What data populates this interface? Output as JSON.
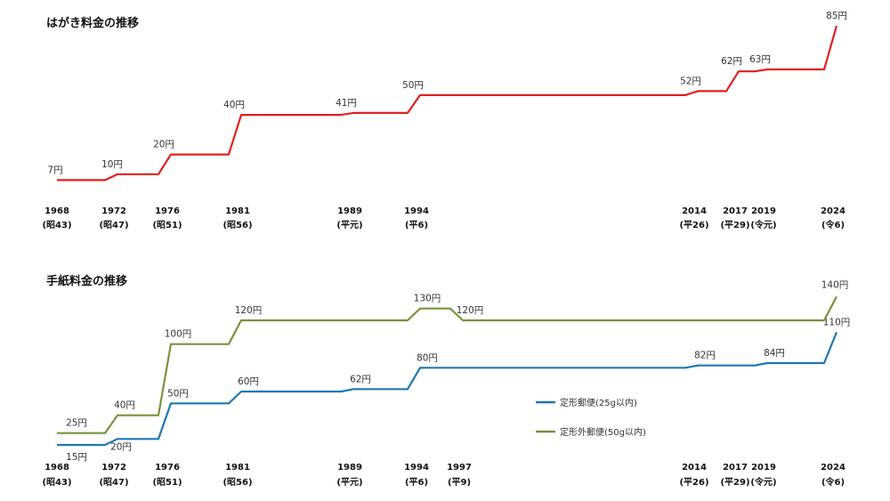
{
  "chart_data": [
    {
      "type": "line",
      "title": "はがき料金の推移",
      "categories": [
        "1968",
        "1972",
        "1976",
        "1981",
        "1989",
        "1994",
        "2014",
        "2017",
        "2019",
        "2024"
      ],
      "era_labels": [
        "(昭43)",
        "(昭47)",
        "(昭51)",
        "(昭56)",
        "(平元)",
        "(平6)",
        "(平26)",
        "(平29)",
        "(令元)",
        "(令6)"
      ],
      "series": [
        {
          "color": "#e02020",
          "x": [
            1968,
            1972,
            1976,
            1981,
            1989,
            1994,
            2014,
            2017,
            2019,
            2024
          ],
          "values": [
            7,
            10,
            20,
            40,
            41,
            50,
            52,
            62,
            63,
            85
          ],
          "labels": [
            "7円",
            "10円",
            "20円",
            "40円",
            "41円",
            "50円",
            "52円",
            "62円",
            "63円",
            "85円"
          ]
        }
      ],
      "ylim": [
        0,
        90
      ],
      "grid": false
    },
    {
      "type": "line",
      "title": "手紙料金の推移",
      "categories": [
        "1968",
        "1972",
        "1976",
        "1981",
        "1989",
        "1994",
        "1997",
        "2014",
        "2017",
        "2019",
        "2024"
      ],
      "era_labels": [
        "(昭43)",
        "(昭47)",
        "(昭51)",
        "(昭56)",
        "(平元)",
        "(平6)",
        "(平9)",
        "(平26)",
        "(平29)",
        "(令元)",
        "(令6)"
      ],
      "series": [
        {
          "name": "定形郵便(25g以内)",
          "color": "#1f77b4",
          "x": [
            1968,
            1972,
            1976,
            1981,
            1989,
            1994,
            2014,
            2019,
            2024
          ],
          "values": [
            15,
            20,
            50,
            60,
            62,
            80,
            82,
            84,
            110
          ],
          "labels": [
            "15円",
            "20円",
            "50円",
            "60円",
            "62円",
            "80円",
            "82円",
            "84円",
            "110円"
          ]
        },
        {
          "name": "定形外郵便(50g以内)",
          "color": "#77933c",
          "x": [
            1968,
            1972,
            1976,
            1981,
            1994,
            1997,
            2024
          ],
          "values": [
            25,
            40,
            100,
            120,
            130,
            120,
            140
          ],
          "labels": [
            "25円",
            "40円",
            "100円",
            "120円",
            "130円",
            "120円",
            "140円"
          ]
        }
      ],
      "ylim": [
        0,
        150
      ],
      "legend": "center-right",
      "grid": false
    }
  ]
}
